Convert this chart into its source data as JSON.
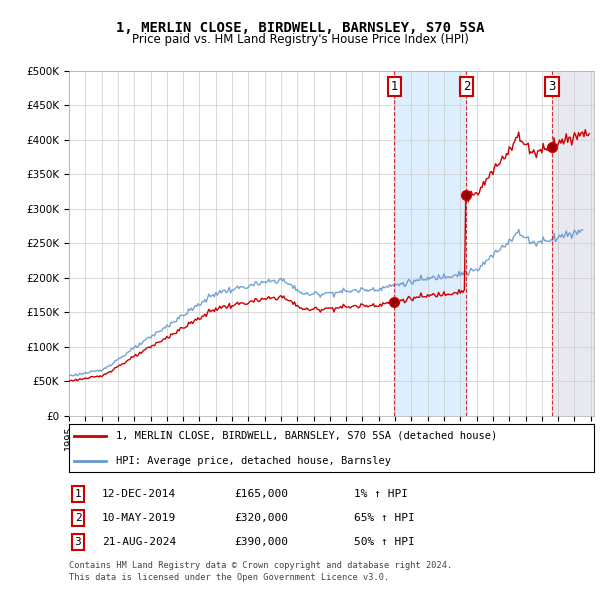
{
  "title": "1, MERLIN CLOSE, BIRDWELL, BARNSLEY, S70 5SA",
  "subtitle": "Price paid vs. HM Land Registry's House Price Index (HPI)",
  "ylim": [
    0,
    500000
  ],
  "yticks": [
    0,
    50000,
    100000,
    150000,
    200000,
    250000,
    300000,
    350000,
    400000,
    450000,
    500000
  ],
  "ytick_labels": [
    "£0",
    "£50K",
    "£100K",
    "£150K",
    "£200K",
    "£250K",
    "£300K",
    "£350K",
    "£400K",
    "£450K",
    "£500K"
  ],
  "x_start_year": 1995,
  "x_end_year": 2027,
  "red_line_color": "#cc0000",
  "blue_line_color": "#6699cc",
  "sale_prices": [
    165000,
    320000,
    390000
  ],
  "sale_labels": [
    "1",
    "2",
    "3"
  ],
  "sale_date_strs": [
    "12-DEC-2014",
    "10-MAY-2019",
    "21-AUG-2024"
  ],
  "sale_price_strs": [
    "£165,000",
    "£320,000",
    "£390,000"
  ],
  "sale_hpi_strs": [
    "1% ↑ HPI",
    "65% ↑ HPI",
    "50% ↑ HPI"
  ],
  "legend_line1": "1, MERLIN CLOSE, BIRDWELL, BARNSLEY, S70 5SA (detached house)",
  "legend_line2": "HPI: Average price, detached house, Barnsley",
  "footer1": "Contains HM Land Registry data © Crown copyright and database right 2024.",
  "footer2": "This data is licensed under the Open Government Licence v3.0.",
  "shaded_region_color": "#ddeeff",
  "background_color": "#ffffff",
  "grid_color": "#cccccc"
}
